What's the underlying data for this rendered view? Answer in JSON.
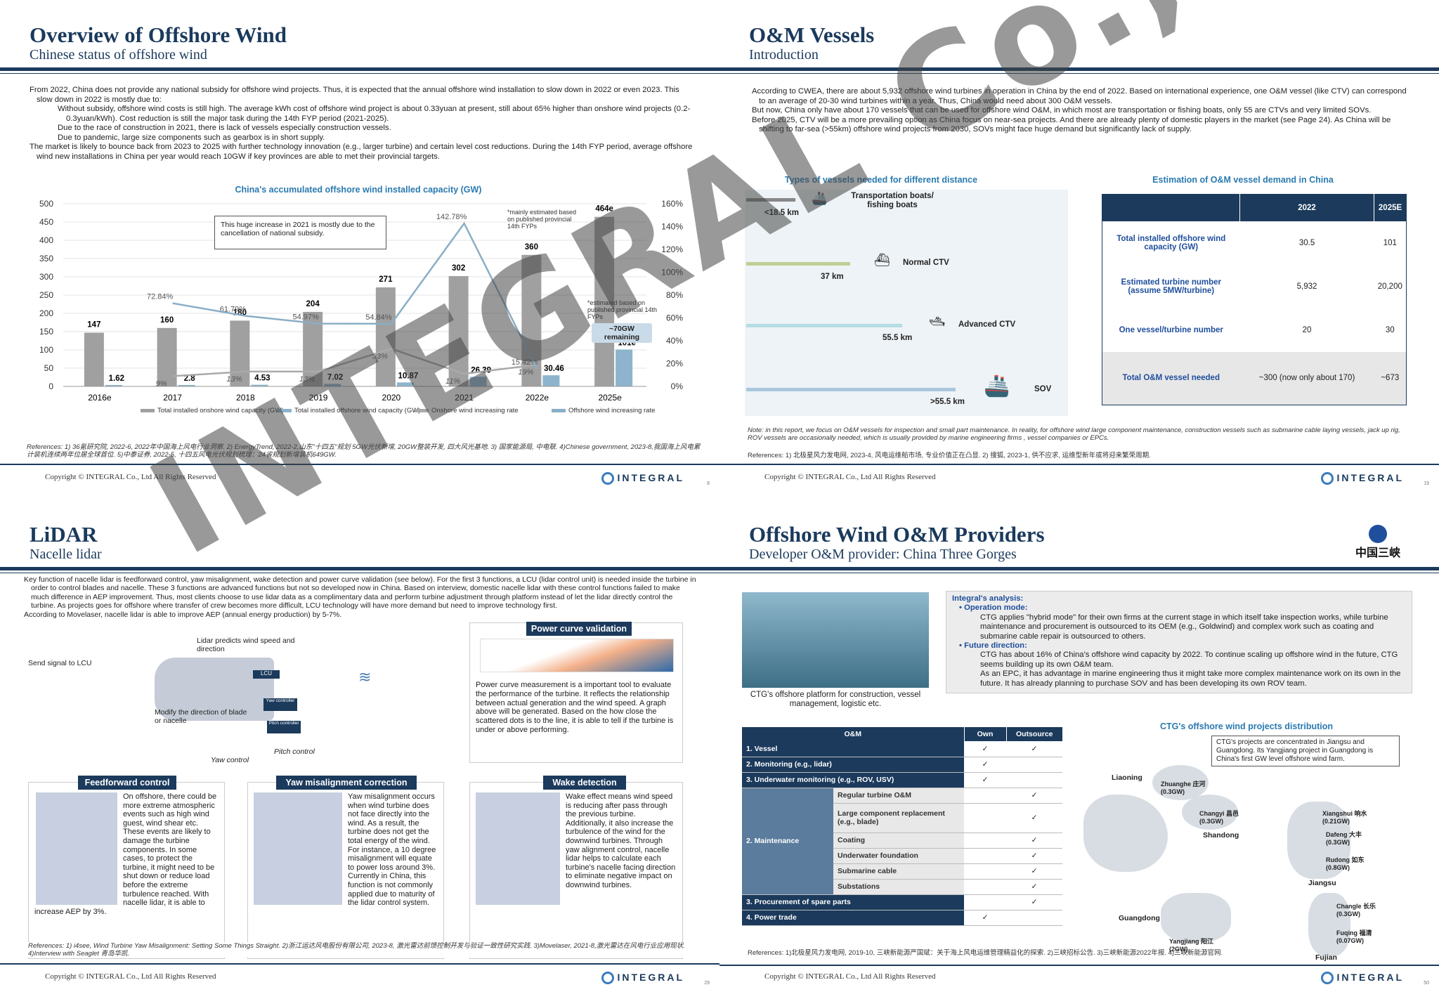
{
  "slide1": {
    "title": "Overview of Offshore Wind",
    "subtitle": "Chinese status of offshore wind",
    "bullets": [
      "From 2022, China does not provide any national subsidy for offshore wind projects. Thus, it is expected that the annual offshore wind installation to slow down in 2022 or even 2023. This slow down in 2022 is mostly due to:",
      "Without subsidy, offshore wind costs is still high. The average kWh cost of offshore wind project is about 0.33yuan at present, still about 65% higher than onshore wind projects (0.2-0.3yuan/kWh). Cost reduction is still the major task during the 14th FYP period (2021-2025).",
      "Due to the race of construction in 2021, there is lack of vessels especially construction vessels.",
      "Due to pandemic, large size components such as gearbox is in short supply.",
      "The market is likely to bounce back from 2023 to 2025 with further technology innovation (e.g., larger turbine) and certain level cost reductions. During the 14th FYP period, average offshore wind new installations in China per year would reach 10GW if key provinces are able to met their provincial targets."
    ],
    "callout": "This huge increase in 2021 is mostly due to the cancellation of national subsidy.",
    "note1": "*mainly estimated based on published provincial 14th FYPs",
    "note2": "*estimated based on published provincial 14th FYPs",
    "remaining": "~70GW remaining",
    "references": "References: 1) 36氪研究院, 2022-6, 2022年中国海上风电行业洞察. 2) EnergyTrend, 2022-2,山东\"十四五\"规划 5GW光伏新增, 20GW整装开发, 四大风光基地. 3) 国家能源局, 中电联. 4)Chinese government, 2023-8,我国海上风电累计装机连续两年位居全球首位. 5)中泰证券, 2022-5, 十四五风电光伏规划梳理：24省规划新增装机649GW.",
    "copyright": "Copyright © INTEGRAL Co., Ltd All Rights Reserved",
    "page": "8"
  },
  "chart_data": {
    "type": "bar",
    "title": "China's accumulated offshore wind installed capacity (GW)",
    "categories": [
      "2016e",
      "2017",
      "2018",
      "2019",
      "2020",
      "2021",
      "2022e",
      "2025e"
    ],
    "series": [
      {
        "name": "Total installed onshore wind capacity (GW)",
        "values": [
          147,
          160,
          180,
          204,
          271,
          302,
          360,
          464
        ],
        "labels": [
          "147",
          "160",
          "180",
          "204",
          "271",
          "302",
          "360",
          "464e"
        ],
        "color": "#a0a0a0"
      },
      {
        "name": "Total installed offshore wind capacity (GW)",
        "values": [
          1.62,
          2.8,
          4.53,
          7.02,
          10.87,
          26.39,
          30.46,
          101
        ],
        "labels": [
          "1.62",
          "2.8",
          "4.53",
          "7.02",
          "10.87",
          "26.39",
          "30.46",
          "101e"
        ],
        "color": "#8db4cc"
      },
      {
        "name": "Onshore wind increasing rate",
        "values": [
          null,
          9,
          13,
          13,
          33,
          11,
          19,
          null
        ],
        "labels": [
          "",
          "9%",
          "13%",
          "13%",
          "33%",
          "11%",
          "19%",
          ""
        ],
        "color": "#aaaaaa"
      },
      {
        "name": "Offshore wind increasing rate",
        "values": [
          null,
          72.84,
          61.79,
          54.97,
          54.84,
          142.78,
          15.42,
          null
        ],
        "labels": [
          "",
          "72.84%",
          "61.79%",
          "54.97%",
          "54.84%",
          "142.78%",
          "15.42%",
          ""
        ],
        "color": "#8aaec6"
      }
    ],
    "yticks": [
      "0",
      "50",
      "100",
      "150",
      "200",
      "250",
      "300",
      "350",
      "400",
      "450",
      "500"
    ],
    "y2ticks": [
      "0%",
      "20%",
      "40%",
      "60%",
      "80%",
      "100%",
      "120%",
      "140%",
      "160%"
    ],
    "ylim": [
      0,
      500
    ],
    "y2lim": [
      0,
      160
    ]
  },
  "slide2": {
    "title": "O&M Vessels",
    "subtitle": "Introduction",
    "bullets": [
      "According to CWEA, there are about 5,932 offshore wind turbines in operation in China by the end of 2022. Based on international experience, one O&M vessel (like CTV) can correspond to an average of 20-30 wind turbines within a year. Thus, China would need about 300 O&M vessels.",
      "But now, China only have about 170 vessels that can be used for offshore wind O&M, in which most are transportation or fishing boats, only 55 are CTVs and very limited SOVs.",
      "Before 2025, CTV will be a more prevailing option as China focus on near-sea projects. And there are already plenty of domestic players in the market (see Page 24). As China will be shifting to far-sea (>55km) offshore wind projects from 2030, SOVs might face huge demand but significantly lack of supply."
    ],
    "vessel_title": "Types of vessels needed for different distance",
    "vessels": [
      {
        "name": "Transportation boats/ fishing boats",
        "dist": "<18.5 km"
      },
      {
        "name": "Normal CTV",
        "dist": "37 km"
      },
      {
        "name": "Advanced CTV",
        "dist": "55.5 km"
      },
      {
        "name": "SOV",
        "dist": ">55.5 km"
      }
    ],
    "table_title": "Estimation of O&M vessel demand in China",
    "table_head": [
      "",
      "2022",
      "2025E"
    ],
    "table_rows": [
      [
        "Total installed offshore wind capacity (GW)",
        "30.5",
        "101"
      ],
      [
        "Estimated turbine number (assume 5MW/turbine)",
        "5,932",
        "20,200"
      ],
      [
        "One vessel/turbine number",
        "20",
        "30"
      ],
      [
        "Total O&M vessel needed",
        "~300 (now only about 170)",
        "~673"
      ]
    ],
    "note": "Note: in this report, we focus on O&M vessels for inspection and small part maintenance. In reality, for offshore wind large component maintenance, construction vessels such as submarine cable laying vessels, jack up rig, ROV vessels are occasionally needed, which is usually provided by marine engineering firms , vessel companies or EPCs.",
    "references": "References: 1) 北极星风力发电网, 2023-4, 风电运维船市场, 专业价值正在凸显. 2) 搜狐, 2023-1, 供不应求, 运维型新年或将迎来繁荣周期.",
    "copyright": "Copyright © INTEGRAL Co., Ltd All Rights Reserved",
    "page": "19"
  },
  "slide3": {
    "title": "LiDAR",
    "subtitle": "Nacelle lidar",
    "bullets": [
      "Key function of nacelle lidar is feedforward control, yaw misalignment, wake detection and power curve validation (see below). For the first 3 functions, a LCU (lidar control unit) is needed inside the turbine in order to control blades and nacelle. These 3 functions are advanced functions but not so developed now in China. Based on interview, domestic nacelle lidar with these control functions failed to make much difference in AEP improvement. Thus, most clients choose to use lidar data as a complimentary data and perform turbine adjustment through platform instead of let the lidar directly control the turbine. As projects goes for offshore where transfer of crew becomes more difficult, LCU technology will have more demand but need to improve technology first.",
      "According to Movelaser, nacelle lidar is able to improve AEP (annual energy production) by 5-7%."
    ],
    "diagram": {
      "step1": "Lidar predicts wind speed and direction",
      "step2": "Send signal to LCU",
      "step3": "Modify the direction of blade or nacelle",
      "yaw": "Yaw control",
      "pitch": "Pitch control",
      "lcu": "LCU",
      "yawc": "Yaw controller",
      "pitchc": "Pitch controller"
    },
    "power_title": "Power curve validation",
    "power_text": "Power curve measurement is a important tool to evaluate the performance of the turbine. It reflects the relationship between actual generation and the wind speed. A graph above will be generated. Based on the how close the scattered dots is to the line, it is able to tell if the turbine is under or above performing.",
    "feed_title": "Feedforward control",
    "feed_text": "On offshore, there could be more extreme atmospheric events such as high wind guest, wind shear etc. These events are likely to damage the turbine components. In some cases, to protect the turbine, it might need to be shut down or reduce load before the extreme turbulence reached. With nacelle lidar, it is able to increase AEP by 3%.",
    "yaw_title": "Yaw misalignment correction",
    "yaw_text": "Yaw misalignment occurs when wind turbine does not face directly into the wind. As a result, the turbine does not get the total energy of the wind. For instance, a 10 degree misalignment will equate to power loss around 3%. Currently in China, this function is not commonly applied due to maturity of the lidar control system.",
    "wake_title": "Wake detection",
    "wake_text": "Wake effect means wind speed is reducing after pass through the previous turbine. Additionally, it also increase the turbulence of the wind for the downwind turbines. Through yaw alignment control, nacelle lidar helps to calculate each turbine's nacelle facing direction to eliminate negative impact on downwind turbines.",
    "references": "References: 1) i4see, Wind Turbine Yaw Misalignment: Setting Some Things Straight. 2)浙江运达风电股份有限公司, 2023-8, 激光雷达前馈控制开发与验证一致性研究实践. 3)Movelaser, 2021-8,激光雷达在风电行业应用现状. 4)Interview with Seaglet 青岛华凯.",
    "copyright": "Copyright © INTEGRAL Co., Ltd All Rights Reserved",
    "page": "29"
  },
  "slide4": {
    "title": "Offshore Wind O&M Providers",
    "subtitle": "Developer O&M provider: China Three Gorges",
    "brand": "中国三峡",
    "photo_caption": "CTG's offshore platform for construction, vessel management, logistic etc.",
    "analysis_title": "Integral's analysis:",
    "analysis": [
      {
        "head": "Operation mode:",
        "items": [
          "CTG applies \"hybrid mode\" for their own firms at the current stage in which itself take inspection works, while turbine maintenance and procurement is outsourced to its OEM (e.g., Goldwind) and complex work such as coating and submarine cable repair is outsourced to others."
        ]
      },
      {
        "head": "Future direction:",
        "items": [
          "CTG has about 16% of China's offshore wind capacity by 2022. To continue scaling up offshore wind in the future, CTG seems building up its own O&M team.",
          "As an EPC, it has advantage in marine engineering thus it might take more complex maintenance work on its own in the future. It has already planning to purchase SOV and has been developing its own ROV team."
        ]
      }
    ],
    "om_head": [
      "O&M",
      "Own",
      "Outsource"
    ],
    "om_rows": [
      {
        "a": "1. Vessel",
        "b": "",
        "own": "✓",
        "out": "✓"
      },
      {
        "a": "2. Monitoring (e.g., lidar)",
        "b": "",
        "own": "✓",
        "out": ""
      },
      {
        "a": "3. Underwater monitoring (e.g., ROV, USV)",
        "b": "",
        "own": "✓",
        "out": ""
      },
      {
        "a": "",
        "b": "Regular turbine O&M",
        "own": "",
        "out": "✓"
      },
      {
        "a": "2. Maintenance",
        "b": "Large component replacement (e.g., blade)",
        "own": "",
        "out": "✓"
      },
      {
        "a": "",
        "b": "Coating",
        "own": "",
        "out": "✓"
      },
      {
        "a": "",
        "b": "Underwater foundation",
        "own": "",
        "out": "✓"
      },
      {
        "a": "",
        "b": "Submarine cable",
        "own": "",
        "out": "✓"
      },
      {
        "a": "",
        "b": "Substations",
        "own": "",
        "out": "✓"
      },
      {
        "a": "3. Procurement of spare parts",
        "b": "",
        "own": "",
        "out": "✓"
      },
      {
        "a": "4. Power trade",
        "b": "",
        "own": "✓",
        "out": ""
      }
    ],
    "map_title": "CTG's offshore wind projects distribution",
    "map_note": "CTG's projects are concentrated in Jiangsu and Guangdong. Its Yangjiang project in Guangdong is China's first GW level offshore wind farm.",
    "map_labels": {
      "liaoning": "Liaoning",
      "zhuanghe": "Zhuanghe 庄河 (0.3GW)",
      "changyi": "Changyi 昌邑 (0.3GW)",
      "shandong": "Shandong",
      "xiangshui": "Xiangshui 响水 (0.21GW)",
      "dafeng": "Dafeng 大丰 (0.3GW)",
      "rudong": "Rudong 如东 (0.8GW)",
      "jiangsu": "Jiangsu",
      "guangdong": "Guangdong",
      "yangjiang": "Yangjiang 阳江 (2GW)",
      "changle": "Changle 长乐 (0.3GW)",
      "fuqing": "Fuqing 福清 (0.07GW)",
      "fujian": "Fujian"
    },
    "references": "References: 1)北极星风力发电网, 2019-10, 三峡新能源严国斌：关于海上风电运维管理精益化的探索. 2)三峡招标公告. 3)三峡新能源2022年报. 4)三峡新能源官网.",
    "copyright": "Copyright © INTEGRAL Co., Ltd All Rights Reserved",
    "page": "50"
  },
  "logo_text": "INTEGRAL",
  "watermark": "INTEGRAL Co., Ltd"
}
